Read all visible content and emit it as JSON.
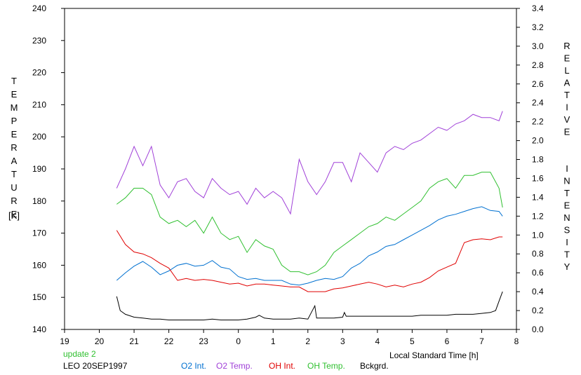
{
  "chart_data": {
    "type": "line",
    "xlabel": "Local Standard Time [h]",
    "ylabel_left": "TEMPERATURE",
    "ylabel_left_unit": "[K]",
    "ylabel_right": "RELATIVE  INTENSITY",
    "xlim": [
      19,
      32
    ],
    "ylim_left": [
      140,
      240
    ],
    "ylim_right": [
      0.0,
      3.4
    ],
    "x_ticks": [
      19,
      20,
      21,
      22,
      23,
      24,
      25,
      26,
      27,
      28,
      29,
      30,
      31,
      32
    ],
    "x_tick_labels": [
      "19",
      "20",
      "21",
      "22",
      "23",
      "0",
      "1",
      "2",
      "3",
      "4",
      "5",
      "6",
      "7",
      "8"
    ],
    "y_left_ticks": [
      "140",
      "150",
      "160",
      "170",
      "180",
      "190",
      "200",
      "210",
      "220",
      "230",
      "240"
    ],
    "y_right_ticks": [
      "0.0",
      "0.2",
      "0.4",
      "0.6",
      "0.8",
      "1.0",
      "1.2",
      "1.4",
      "1.6",
      "1.8",
      "2.0",
      "2.2",
      "2.4",
      "2.6",
      "2.8",
      "3.0",
      "3.2",
      "3.4"
    ],
    "grid": false,
    "annotations": {
      "update": "update 2",
      "station": "LEO 20SEP1997"
    },
    "series": [
      {
        "name": "O2 Int.",
        "color": "#0070d0",
        "axis": "right",
        "x": [
          20.5,
          20.75,
          21.0,
          21.25,
          21.5,
          21.75,
          22.0,
          22.25,
          22.5,
          22.75,
          23.0,
          23.25,
          23.5,
          23.75,
          24.0,
          24.25,
          24.5,
          24.75,
          25.0,
          25.25,
          25.5,
          25.75,
          26.0,
          26.25,
          26.5,
          26.75,
          27.0,
          27.25,
          27.5,
          27.75,
          28.0,
          28.25,
          28.5,
          28.75,
          29.0,
          29.25,
          29.5,
          29.75,
          30.0,
          30.25,
          30.5,
          30.75,
          31.0,
          31.25,
          31.5,
          31.6
        ],
        "y": [
          0.52,
          0.6,
          0.67,
          0.72,
          0.66,
          0.58,
          0.62,
          0.68,
          0.7,
          0.67,
          0.68,
          0.73,
          0.66,
          0.64,
          0.56,
          0.53,
          0.54,
          0.52,
          0.52,
          0.52,
          0.48,
          0.47,
          0.49,
          0.52,
          0.54,
          0.53,
          0.56,
          0.65,
          0.7,
          0.78,
          0.82,
          0.88,
          0.9,
          0.95,
          1.0,
          1.05,
          1.1,
          1.16,
          1.2,
          1.22,
          1.25,
          1.28,
          1.3,
          1.26,
          1.25,
          1.2
        ]
      },
      {
        "name": "O2 Temp.",
        "color": "#a040d8",
        "axis": "left",
        "x": [
          20.5,
          20.75,
          21.0,
          21.25,
          21.5,
          21.75,
          22.0,
          22.25,
          22.5,
          22.75,
          23.0,
          23.25,
          23.5,
          23.75,
          24.0,
          24.25,
          24.5,
          24.75,
          25.0,
          25.25,
          25.5,
          25.75,
          26.0,
          26.25,
          26.5,
          26.75,
          27.0,
          27.25,
          27.5,
          27.75,
          28.0,
          28.25,
          28.5,
          28.75,
          29.0,
          29.25,
          29.5,
          29.75,
          30.0,
          30.25,
          30.5,
          30.75,
          31.0,
          31.25,
          31.5,
          31.6
        ],
        "y": [
          184,
          190,
          197,
          191,
          197,
          185,
          181,
          186,
          187,
          183,
          181,
          187,
          184,
          182,
          183,
          179,
          184,
          181,
          183,
          181,
          176,
          193,
          186,
          182,
          186,
          192,
          192,
          186,
          195,
          192,
          189,
          195,
          197,
          196,
          198,
          199,
          201,
          203,
          202,
          204,
          205,
          207,
          206,
          206,
          205,
          208
        ]
      },
      {
        "name": "OH Int.",
        "color": "#e00000",
        "axis": "right",
        "x": [
          20.5,
          20.75,
          21.0,
          21.25,
          21.5,
          21.75,
          22.0,
          22.25,
          22.5,
          22.75,
          23.0,
          23.25,
          23.5,
          23.75,
          24.0,
          24.25,
          24.5,
          24.75,
          25.0,
          25.25,
          25.5,
          25.75,
          26.0,
          26.25,
          26.5,
          26.75,
          27.0,
          27.25,
          27.5,
          27.75,
          28.0,
          28.25,
          28.5,
          28.75,
          29.0,
          29.25,
          29.5,
          29.75,
          30.0,
          30.25,
          30.5,
          30.75,
          31.0,
          31.25,
          31.5,
          31.6
        ],
        "y": [
          1.05,
          0.9,
          0.82,
          0.8,
          0.76,
          0.7,
          0.65,
          0.52,
          0.54,
          0.52,
          0.53,
          0.52,
          0.5,
          0.48,
          0.49,
          0.46,
          0.48,
          0.48,
          0.47,
          0.46,
          0.45,
          0.45,
          0.4,
          0.4,
          0.4,
          0.43,
          0.44,
          0.46,
          0.48,
          0.5,
          0.48,
          0.45,
          0.47,
          0.45,
          0.48,
          0.5,
          0.55,
          0.62,
          0.66,
          0.7,
          0.92,
          0.95,
          0.96,
          0.95,
          0.98,
          0.98
        ]
      },
      {
        "name": "OH Temp.",
        "color": "#30c030",
        "axis": "left",
        "x": [
          20.5,
          20.75,
          21.0,
          21.25,
          21.5,
          21.75,
          22.0,
          22.25,
          22.5,
          22.75,
          23.0,
          23.25,
          23.5,
          23.75,
          24.0,
          24.25,
          24.5,
          24.75,
          25.0,
          25.25,
          25.5,
          25.75,
          26.0,
          26.25,
          26.5,
          26.75,
          27.0,
          27.25,
          27.5,
          27.75,
          28.0,
          28.25,
          28.5,
          28.75,
          29.0,
          29.25,
          29.5,
          29.75,
          30.0,
          30.25,
          30.5,
          30.75,
          31.0,
          31.25,
          31.5,
          31.6
        ],
        "y": [
          179,
          181,
          184,
          184,
          182,
          175,
          173,
          174,
          172,
          174,
          170,
          175,
          170,
          168,
          169,
          164,
          168,
          166,
          165,
          160,
          158,
          158,
          157,
          158,
          160,
          164,
          166,
          168,
          170,
          172,
          173,
          175,
          174,
          176,
          178,
          180,
          184,
          186,
          187,
          184,
          188,
          188,
          189,
          189,
          184,
          178
        ]
      },
      {
        "name": "Bckgrd.",
        "color": "#000000",
        "axis": "right",
        "x": [
          20.5,
          20.6,
          20.75,
          21.0,
          21.25,
          21.5,
          21.75,
          22.0,
          22.25,
          22.5,
          22.75,
          23.0,
          23.25,
          23.5,
          23.75,
          24.0,
          24.25,
          24.5,
          24.6,
          24.75,
          25.0,
          25.25,
          25.5,
          25.75,
          26.0,
          26.1,
          26.2,
          26.25,
          26.5,
          26.75,
          27.0,
          27.05,
          27.1,
          27.25,
          27.5,
          27.75,
          28.0,
          28.25,
          28.5,
          28.75,
          29.0,
          29.25,
          29.5,
          29.75,
          30.0,
          30.25,
          30.5,
          30.75,
          31.0,
          31.25,
          31.4,
          31.5,
          31.6
        ],
        "y": [
          0.35,
          0.2,
          0.16,
          0.13,
          0.12,
          0.11,
          0.11,
          0.1,
          0.1,
          0.1,
          0.1,
          0.1,
          0.11,
          0.1,
          0.1,
          0.1,
          0.11,
          0.13,
          0.15,
          0.12,
          0.11,
          0.11,
          0.11,
          0.12,
          0.11,
          0.18,
          0.25,
          0.12,
          0.12,
          0.12,
          0.13,
          0.18,
          0.14,
          0.14,
          0.14,
          0.14,
          0.14,
          0.14,
          0.14,
          0.14,
          0.14,
          0.15,
          0.15,
          0.15,
          0.15,
          0.16,
          0.16,
          0.16,
          0.17,
          0.18,
          0.2,
          0.3,
          0.4
        ]
      }
    ]
  }
}
